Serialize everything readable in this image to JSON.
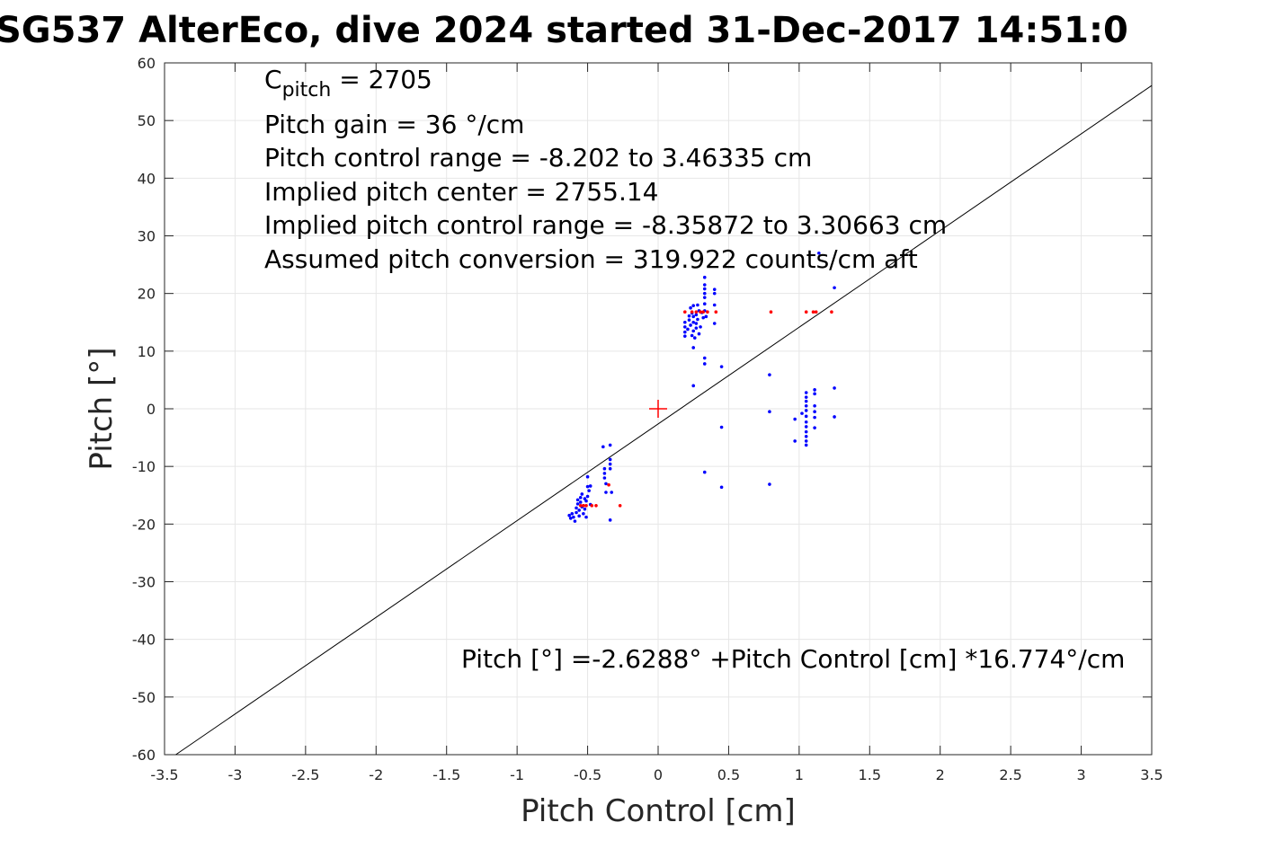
{
  "title": "SG537 AlterEco, dive 2024 started 31-Dec-2017 14:51:0",
  "chart_data": {
    "type": "scatter",
    "title": "SG537 AlterEco, dive 2024 started 31-Dec-2017 14:51:0",
    "xlabel": "Pitch Control [cm]",
    "ylabel": "Pitch [°]",
    "xlim": [
      -3.5,
      3.5
    ],
    "ylim": [
      -60,
      60
    ],
    "xticks": [
      -3.5,
      -3,
      -2.5,
      -2,
      -1.5,
      -1,
      -0.5,
      0,
      0.5,
      1,
      1.5,
      2,
      2.5,
      3,
      3.5
    ],
    "xtick_labels": [
      "-3.5",
      "-3",
      "-2.5",
      "-2",
      "-1.5",
      "-1",
      "-0.5",
      "0",
      "0.5",
      "1",
      "1.5",
      "2",
      "2.5",
      "3",
      "3.5"
    ],
    "yticks": [
      -60,
      -50,
      -40,
      -30,
      -20,
      -10,
      0,
      10,
      20,
      30,
      40,
      50,
      60
    ],
    "ytick_labels": [
      "-60",
      "-50",
      "-40",
      "-30",
      "-20",
      "-10",
      "0",
      "10",
      "20",
      "30",
      "40",
      "50",
      "60"
    ],
    "grid": true,
    "colors": {
      "fit_line": "#000000",
      "blue_points": "#0000ff",
      "red_points": "#ff0000",
      "center_marker": "#ff0000",
      "grid": "#e6e6e6",
      "axes": "#262626"
    },
    "fit_line": {
      "intercept": -2.6288,
      "slope": 16.774
    },
    "center_marker": {
      "x": 0,
      "y": 0,
      "marker": "plus"
    },
    "series": [
      {
        "color": "#0000ff",
        "marker": "dot",
        "points": [
          [
            -0.63,
            -18.5
          ],
          [
            -0.62,
            -19.0
          ],
          [
            -0.61,
            -18.2
          ],
          [
            -0.6,
            -18.8
          ],
          [
            -0.59,
            -19.5
          ],
          [
            -0.58,
            -18.0
          ],
          [
            -0.58,
            -17.2
          ],
          [
            -0.57,
            -16.5
          ],
          [
            -0.57,
            -15.8
          ],
          [
            -0.56,
            -17.6
          ],
          [
            -0.56,
            -18.6
          ],
          [
            -0.55,
            -16.2
          ],
          [
            -0.55,
            -15.4
          ],
          [
            -0.54,
            -17.0
          ],
          [
            -0.54,
            -14.8
          ],
          [
            -0.53,
            -16.8
          ],
          [
            -0.53,
            -18.2
          ],
          [
            -0.52,
            -15.6
          ],
          [
            -0.52,
            -17.4
          ],
          [
            -0.51,
            -16.0
          ],
          [
            -0.51,
            -18.8
          ],
          [
            -0.5,
            -15.2
          ],
          [
            -0.5,
            -13.5
          ],
          [
            -0.5,
            -11.8
          ],
          [
            -0.49,
            -14.2
          ],
          [
            -0.48,
            -13.4
          ],
          [
            -0.48,
            -16.6
          ],
          [
            -0.39,
            -6.6
          ],
          [
            -0.38,
            -10.4
          ],
          [
            -0.38,
            -11.2
          ],
          [
            -0.38,
            -12.0
          ],
          [
            -0.37,
            -13.0
          ],
          [
            -0.37,
            -14.5
          ],
          [
            -0.34,
            -6.3
          ],
          [
            -0.34,
            -8.8
          ],
          [
            -0.34,
            -9.6
          ],
          [
            -0.34,
            -10.4
          ],
          [
            -0.34,
            -19.3
          ],
          [
            -0.33,
            -14.5
          ],
          [
            0.19,
            15.0
          ],
          [
            0.19,
            14.2
          ],
          [
            0.19,
            13.3
          ],
          [
            0.19,
            12.6
          ],
          [
            0.21,
            13.8
          ],
          [
            0.22,
            15.4
          ],
          [
            0.22,
            16.1
          ],
          [
            0.23,
            14.5
          ],
          [
            0.23,
            17.5
          ],
          [
            0.24,
            16.6
          ],
          [
            0.24,
            12.7
          ],
          [
            0.25,
            13.5
          ],
          [
            0.25,
            15.0
          ],
          [
            0.25,
            16.0
          ],
          [
            0.25,
            17.9
          ],
          [
            0.25,
            10.6
          ],
          [
            0.25,
            4.0
          ],
          [
            0.26,
            12.3
          ],
          [
            0.27,
            14.0
          ],
          [
            0.27,
            14.8
          ],
          [
            0.27,
            16.3
          ],
          [
            0.28,
            15.5
          ],
          [
            0.28,
            18.0
          ],
          [
            0.29,
            17.0
          ],
          [
            0.29,
            13.0
          ],
          [
            0.3,
            14.2
          ],
          [
            0.31,
            16.7
          ],
          [
            0.32,
            15.8
          ],
          [
            0.33,
            17.0
          ],
          [
            0.33,
            18.2
          ],
          [
            0.33,
            19.3
          ],
          [
            0.33,
            20.0
          ],
          [
            0.33,
            20.8
          ],
          [
            0.33,
            21.5
          ],
          [
            0.33,
            22.8
          ],
          [
            0.33,
            8.8
          ],
          [
            0.33,
            7.8
          ],
          [
            0.33,
            -11.0
          ],
          [
            0.34,
            16.0
          ],
          [
            0.4,
            20.0
          ],
          [
            0.4,
            20.7
          ],
          [
            0.4,
            18.0
          ],
          [
            0.4,
            14.8
          ],
          [
            0.45,
            7.3
          ],
          [
            0.45,
            -3.2
          ],
          [
            0.45,
            -13.6
          ],
          [
            0.79,
            5.9
          ],
          [
            0.79,
            -0.5
          ],
          [
            0.79,
            -13.1
          ],
          [
            0.97,
            -1.8
          ],
          [
            0.97,
            -5.6
          ],
          [
            1.02,
            -0.8
          ],
          [
            1.05,
            2.8
          ],
          [
            1.05,
            2.0
          ],
          [
            1.05,
            1.3
          ],
          [
            1.05,
            0.5
          ],
          [
            1.05,
            -0.3
          ],
          [
            1.05,
            -1.3
          ],
          [
            1.05,
            -2.3
          ],
          [
            1.05,
            -3.1
          ],
          [
            1.05,
            -4.0
          ],
          [
            1.05,
            -4.8
          ],
          [
            1.05,
            -5.6
          ],
          [
            1.05,
            -6.3
          ],
          [
            1.11,
            3.3
          ],
          [
            1.11,
            2.6
          ],
          [
            1.11,
            0.5
          ],
          [
            1.11,
            -0.5
          ],
          [
            1.11,
            -1.5
          ],
          [
            1.11,
            -3.3
          ],
          [
            1.14,
            27.0
          ],
          [
            1.25,
            21.0
          ],
          [
            1.25,
            3.6
          ],
          [
            1.25,
            -1.4
          ]
        ]
      },
      {
        "color": "#ff0000",
        "marker": "dot",
        "points": [
          [
            -0.55,
            -16.8
          ],
          [
            -0.53,
            -16.8
          ],
          [
            -0.51,
            -16.8
          ],
          [
            -0.47,
            -16.8
          ],
          [
            -0.44,
            -16.8
          ],
          [
            -0.35,
            -13.2
          ],
          [
            -0.27,
            -16.8
          ],
          [
            0.19,
            16.8
          ],
          [
            0.24,
            16.8
          ],
          [
            0.27,
            16.8
          ],
          [
            0.3,
            16.8
          ],
          [
            0.32,
            16.8
          ],
          [
            0.35,
            16.8
          ],
          [
            0.41,
            16.8
          ],
          [
            0.8,
            16.8
          ],
          [
            1.05,
            16.8
          ],
          [
            1.1,
            16.8
          ],
          [
            1.12,
            16.8
          ],
          [
            1.23,
            16.8
          ]
        ]
      }
    ],
    "annotations": {
      "cpitch_base": "C",
      "cpitch_sub": "pitch",
      "cpitch_rest": " = 2705",
      "line2": "Pitch gain = 36 °/cm",
      "line3": "Pitch control range = -8.202 to 3.46335 cm",
      "line4": "Implied pitch center = 2755.14",
      "line5": "Implied pitch control range = -8.35872 to 3.30663 cm",
      "line6": "Assumed pitch conversion = 319.922 counts/cm aft",
      "equation": "Pitch [°] =-2.6288° +Pitch Control [cm] *16.774°/cm"
    }
  }
}
